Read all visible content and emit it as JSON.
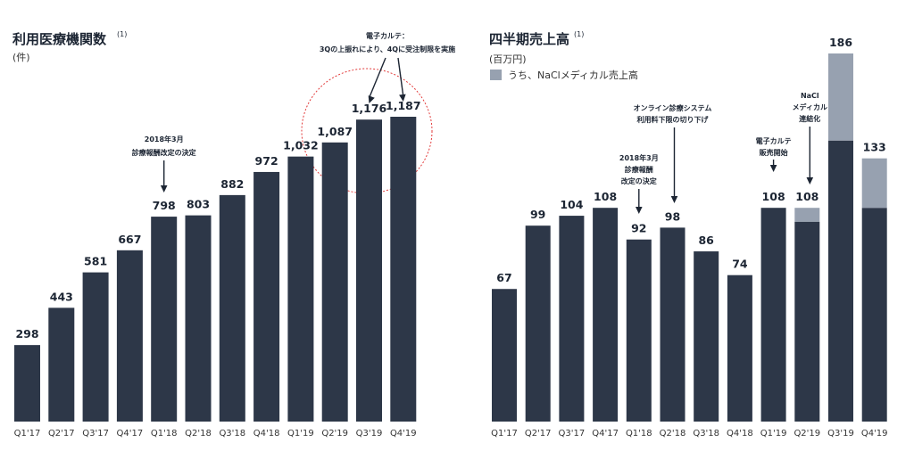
{
  "colors": {
    "main": "#2d3748",
    "nacl": "#97a1b0",
    "circle": "#e23a3a"
  },
  "chart_data": [
    {
      "type": "bar",
      "title": "利用医療機関数",
      "title_note": "(1)",
      "unit": "(件)",
      "categories": [
        "Q1'17",
        "Q2'17",
        "Q3'17",
        "Q4'17",
        "Q1'18",
        "Q2'18",
        "Q3'18",
        "Q4'18",
        "Q1'19",
        "Q2'19",
        "Q3'19",
        "Q4'19"
      ],
      "values": [
        298,
        443,
        581,
        667,
        798,
        803,
        882,
        972,
        1032,
        1087,
        1176,
        1187
      ],
      "value_labels": [
        "298",
        "443",
        "581",
        "667",
        "798",
        "803",
        "882",
        "972",
        "1,032",
        "1,087",
        "1,176",
        "1,187"
      ],
      "ylim": [
        0,
        1250
      ],
      "grid": false,
      "annotations": [
        {
          "lines": [
            "2018年3月",
            "診療報酬改定の決定"
          ],
          "category": "Q1'18"
        },
        {
          "lines": [
            "電子カルテ：",
            "3Qの上振れにより、4Qに受注制限を実施"
          ],
          "categories": [
            "Q3'19",
            "Q4'19"
          ],
          "highlight": "circle"
        }
      ]
    },
    {
      "type": "stacked_bar",
      "title": "四半期売上高",
      "title_note": "(1)",
      "unit": "(百万円)",
      "legend": [
        {
          "label": "うち、NaClメディカル売上高",
          "color": "#97a1b0"
        }
      ],
      "categories": [
        "Q1'17",
        "Q2'17",
        "Q3'17",
        "Q4'17",
        "Q1'18",
        "Q2'18",
        "Q3'18",
        "Q4'18",
        "Q1'19",
        "Q2'19",
        "Q3'19",
        "Q4'19"
      ],
      "totals": [
        67,
        99,
        104,
        108,
        92,
        98,
        86,
        74,
        108,
        108,
        186,
        133
      ],
      "series": [
        {
          "name": "うち、NaClメディカル売上高",
          "values": [
            0,
            0,
            0,
            0,
            0,
            0,
            0,
            0,
            0,
            7,
            44,
            25
          ]
        }
      ],
      "ylim": [
        0,
        190
      ],
      "grid": false,
      "annotations": [
        {
          "lines": [
            "2018年3月",
            "診療報酬",
            "改定の決定"
          ],
          "category": "Q1'18"
        },
        {
          "lines": [
            "オンライン診療システム",
            "利用料下限の切り下げ"
          ],
          "category": "Q2'18"
        },
        {
          "lines": [
            "電子カルテ",
            "販売開始"
          ],
          "category": "Q1'19"
        },
        {
          "lines": [
            "NaCl",
            "メディカル",
            "連結化"
          ],
          "category": "Q2'19"
        }
      ]
    }
  ]
}
